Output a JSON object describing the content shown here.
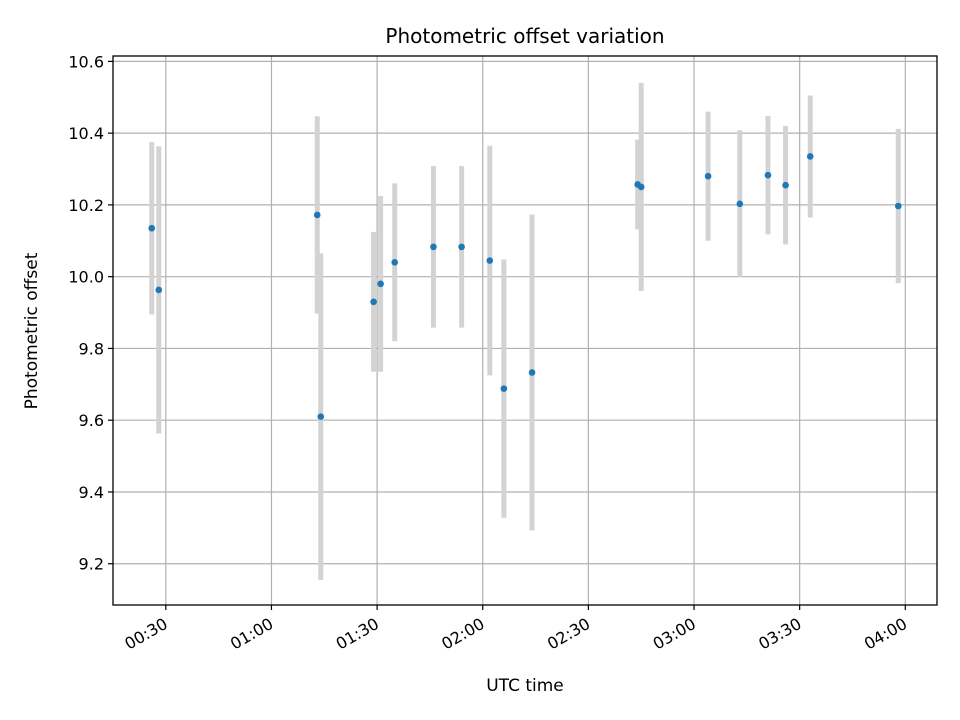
{
  "chart_data": {
    "type": "scatter",
    "title": "Photometric offset variation",
    "xlabel": "UTC time",
    "ylabel": "Photometric offset",
    "x_format": "HH:MM",
    "x_ticks": [
      "00:30",
      "01:00",
      "01:30",
      "02:00",
      "02:30",
      "03:00",
      "03:30",
      "04:00"
    ],
    "y_ticks": [
      "9.2",
      "9.4",
      "9.6",
      "9.8",
      "10.0",
      "10.2",
      "10.4",
      "10.6"
    ],
    "xlim": [
      "00:15",
      "04:09"
    ],
    "ylim": [
      9.085,
      10.615
    ],
    "grid": true,
    "colors": {
      "point": "#1f77b4",
      "errorbar": "#d3d3d3",
      "grid": "#b0b0b0",
      "axes": "#000000"
    },
    "points": [
      {
        "x": "00:26",
        "y": 10.135,
        "yerr": 0.24
      },
      {
        "x": "00:28",
        "y": 9.963,
        "yerr": 0.4
      },
      {
        "x": "01:13",
        "y": 10.172,
        "yerr": 0.275
      },
      {
        "x": "01:14",
        "y": 9.61,
        "yerr": 0.455
      },
      {
        "x": "01:29",
        "y": 9.93,
        "yerr": 0.195
      },
      {
        "x": "01:31",
        "y": 9.98,
        "yerr": 0.245
      },
      {
        "x": "01:35",
        "y": 10.04,
        "yerr": 0.22
      },
      {
        "x": "01:46",
        "y": 10.083,
        "yerr": 0.225
      },
      {
        "x": "01:54",
        "y": 10.083,
        "yerr": 0.225
      },
      {
        "x": "02:02",
        "y": 10.045,
        "yerr": 0.32
      },
      {
        "x": "02:06",
        "y": 9.688,
        "yerr": 0.36
      },
      {
        "x": "02:14",
        "y": 9.733,
        "yerr": 0.44
      },
      {
        "x": "02:44",
        "y": 10.257,
        "yerr": 0.125
      },
      {
        "x": "02:45",
        "y": 10.25,
        "yerr": 0.29
      },
      {
        "x": "03:04",
        "y": 10.28,
        "yerr": 0.18
      },
      {
        "x": "03:13",
        "y": 10.203,
        "yerr": 0.205
      },
      {
        "x": "03:21",
        "y": 10.283,
        "yerr": 0.165
      },
      {
        "x": "03:26",
        "y": 10.255,
        "yerr": 0.165
      },
      {
        "x": "03:33",
        "y": 10.335,
        "yerr": 0.17
      },
      {
        "x": "03:58",
        "y": 10.197,
        "yerr": 0.215
      }
    ]
  }
}
